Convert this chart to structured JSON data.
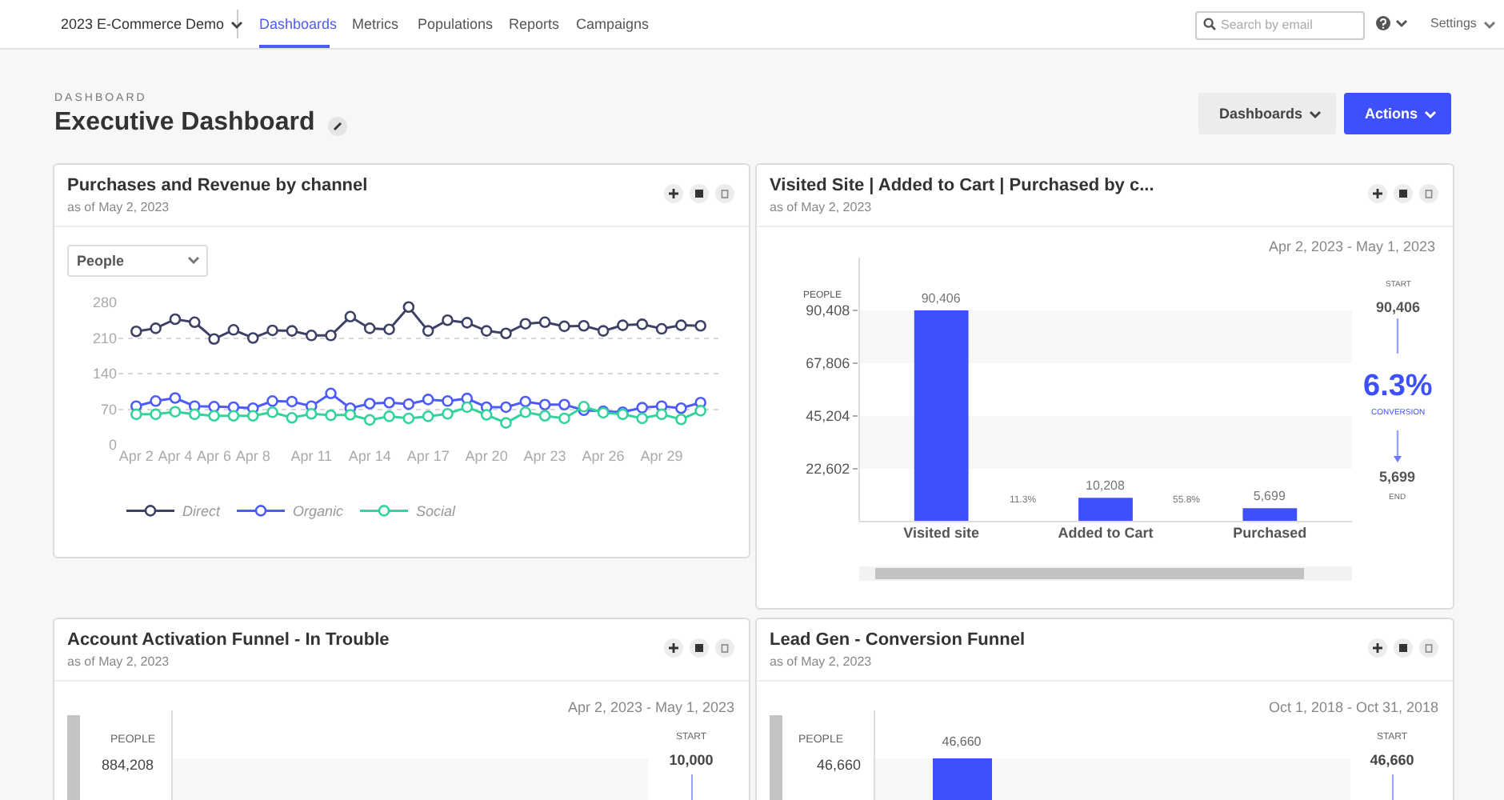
{
  "chart_data": [
    {
      "type": "other",
      "title": "Executive Dashboard",
      "annotations": [
        "2023 E-Commerce Demo",
        "Dashboards",
        "Metrics",
        "Populations",
        "Reports",
        "Campaigns",
        "Search by email",
        "Settings",
        "DASHBOARD",
        "Dashboards",
        "Actions"
      ]
    },
    {
      "type": "line",
      "title": "Purchases and Revenue by channel",
      "subtitle": "as of May 2, 2023",
      "annotations": [
        "People"
      ],
      "x": [
        "2023-04-02",
        "2023-04-03",
        "2023-04-04",
        "2023-04-05",
        "2023-04-06",
        "2023-04-07",
        "2023-04-08",
        "2023-04-09",
        "2023-04-10",
        "2023-04-11",
        "2023-04-12",
        "2023-04-13",
        "2023-04-14",
        "2023-04-15",
        "2023-04-16",
        "2023-04-17",
        "2023-04-18",
        "2023-04-19",
        "2023-04-20",
        "2023-04-21",
        "2023-04-22",
        "2023-04-23",
        "2023-04-24",
        "2023-04-25",
        "2023-04-26",
        "2023-04-27",
        "2023-04-28",
        "2023-04-29",
        "2023-04-30",
        "2023-05-01"
      ],
      "series": [
        {
          "name": "Direct",
          "color": "#3e4166",
          "values": [
            223,
            229,
            247,
            241,
            208,
            226,
            210,
            225,
            224,
            215,
            215,
            252,
            229,
            227,
            271,
            224,
            245,
            240,
            224,
            219,
            238,
            241,
            233,
            234,
            224,
            235,
            237,
            228,
            235,
            234
          ]
        },
        {
          "name": "Organic",
          "color": "#4d5bfa",
          "values": [
            76,
            86,
            92,
            76,
            75,
            74,
            72,
            86,
            85,
            76,
            101,
            72,
            81,
            83,
            80,
            89,
            86,
            91,
            74,
            74,
            85,
            79,
            79,
            68,
            66,
            64,
            73,
            76,
            72,
            83
          ]
        },
        {
          "name": "Social",
          "color": "#34d399",
          "values": [
            60,
            60,
            65,
            60,
            57,
            57,
            57,
            64,
            53,
            61,
            58,
            59,
            49,
            56,
            52,
            56,
            61,
            74,
            59,
            43,
            64,
            57,
            52,
            75,
            63,
            60,
            52,
            60,
            50,
            67
          ]
        }
      ],
      "xlim": [
        "2023-04-01T02:00",
        "2023-05-01T22:00"
      ],
      "xticks": [
        {
          "value": "2023-04-02",
          "label": "Apr 2"
        },
        {
          "value": "2023-04-04",
          "label": "Apr 4"
        },
        {
          "value": "2023-04-06",
          "label": "Apr 6"
        },
        {
          "value": "2023-04-08",
          "label": "Apr 8"
        },
        {
          "value": "2023-04-11",
          "label": "Apr 11"
        },
        {
          "value": "2023-04-14",
          "label": "Apr 14"
        },
        {
          "value": "2023-04-17",
          "label": "Apr 17"
        },
        {
          "value": "2023-04-20",
          "label": "Apr 20"
        },
        {
          "value": "2023-04-23",
          "label": "Apr 23"
        },
        {
          "value": "2023-04-26",
          "label": "Apr 26"
        },
        {
          "value": "2023-04-29",
          "label": "Apr 29"
        }
      ],
      "ylim": [
        0,
        280
      ],
      "yticks": [
        0,
        70,
        140,
        210,
        280
      ],
      "grid": "y",
      "legend": "bottom left",
      "marker": "circle",
      "line_style": "solid"
    },
    {
      "type": "bar",
      "title": "Visited Site | Added to Cart | Purchased by c...",
      "subtitle": "as of May 2, 2023",
      "ylabel": "PEOPLE",
      "categories": [
        "Visited site",
        "Added to Cart",
        "Purchased"
      ],
      "values": [
        90406,
        10208,
        5699
      ],
      "color": "#3d50fc",
      "value_labels": [
        "90,406",
        "10,208",
        "5,699"
      ],
      "ylim": [
        0,
        113010
      ],
      "yticks": [
        {
          "value": 22602,
          "label": "22,602"
        },
        {
          "value": 45204,
          "label": "45,204"
        },
        {
          "value": 67806,
          "label": "67,806"
        },
        {
          "value": 90408,
          "label": "90,408"
        }
      ],
      "bands": [
        {
          "axis": "y",
          "from": 22602,
          "to": 45204,
          "color": "#f7f7f7"
        },
        {
          "axis": "y",
          "from": 67806,
          "to": 90408,
          "color": "#f7f7f7"
        }
      ],
      "annotations": [
        "Apr 2, 2023 - May 1, 2023",
        "11.3%",
        "55.8%",
        "START",
        "90,406",
        "6.3%",
        "CONVERSION",
        "5,699",
        "END"
      ]
    },
    {
      "type": "other",
      "title": "Account Activation Funnel - In Trouble",
      "subtitle": "as of May 2, 2023",
      "annotations": [
        "Apr 2, 2023 - May 1, 2023",
        "PEOPLE",
        "884,208",
        "START",
        "10,000"
      ]
    },
    {
      "type": "other",
      "title": "Lead Gen - Conversion Funnel",
      "subtitle": "as of May 2, 2023",
      "annotations": [
        "Oct 1, 2018 - Oct 31, 2018",
        "PEOPLE",
        "46,660",
        "START",
        "46,660",
        "46,660"
      ]
    }
  ]
}
